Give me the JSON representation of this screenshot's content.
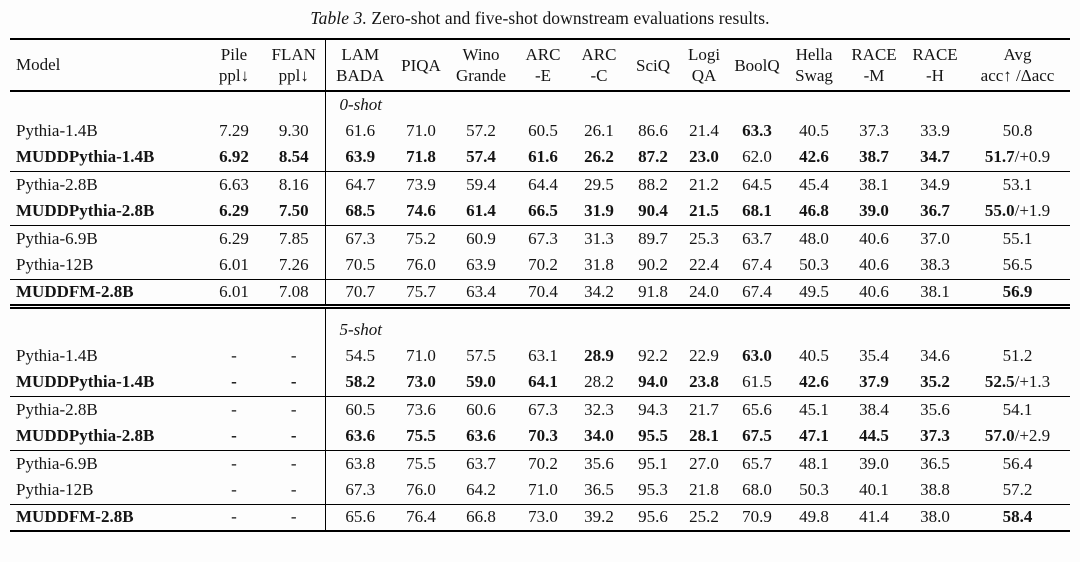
{
  "caption": {
    "label": "Table 3.",
    "text": "Zero-shot and five-shot downstream evaluations results."
  },
  "table": {
    "model_header": "Model",
    "columns": [
      {
        "l1": "Pile",
        "l2": "ppl↓"
      },
      {
        "l1": "FLAN",
        "l2": "ppl↓"
      },
      {
        "l1": "LAM",
        "l2": "BADA"
      },
      {
        "l1": "PIQA",
        "l2": ""
      },
      {
        "l1": "Wino",
        "l2": "Grande"
      },
      {
        "l1": "ARC",
        "l2": "-E"
      },
      {
        "l1": "ARC",
        "l2": "-C"
      },
      {
        "l1": "SciQ",
        "l2": ""
      },
      {
        "l1": "Logi",
        "l2": "QA"
      },
      {
        "l1": "BoolQ",
        "l2": ""
      },
      {
        "l1": "Hella",
        "l2": "Swag"
      },
      {
        "l1": "RACE",
        "l2": "-M"
      },
      {
        "l1": "RACE",
        "l2": "-H"
      },
      {
        "l1": "Avg",
        "l2": "acc↑ /Δacc"
      }
    ],
    "sections": [
      {
        "label": "0-shot",
        "groups": [
          {
            "rows": [
              {
                "model": "Pythia-1.4B",
                "model_bold": false,
                "values": [
                  "7.29",
                  "9.30",
                  "61.6",
                  "71.0",
                  "57.2",
                  "60.5",
                  "26.1",
                  "86.6",
                  "21.4",
                  "63.3",
                  "40.5",
                  "37.3",
                  "33.9",
                  "50.8"
                ],
                "bold": [
                  9
                ],
                "avg_suffix": ""
              },
              {
                "model": "MUDDPythia-1.4B",
                "model_bold": true,
                "values": [
                  "6.92",
                  "8.54",
                  "63.9",
                  "71.8",
                  "57.4",
                  "61.6",
                  "26.2",
                  "87.2",
                  "23.0",
                  "62.0",
                  "42.6",
                  "38.7",
                  "34.7",
                  "51.7"
                ],
                "bold": [
                  0,
                  1,
                  2,
                  3,
                  4,
                  5,
                  6,
                  7,
                  8,
                  10,
                  11,
                  12,
                  13
                ],
                "avg_suffix": "/+0.9"
              }
            ]
          },
          {
            "rows": [
              {
                "model": "Pythia-2.8B",
                "model_bold": false,
                "values": [
                  "6.63",
                  "8.16",
                  "64.7",
                  "73.9",
                  "59.4",
                  "64.4",
                  "29.5",
                  "88.2",
                  "21.2",
                  "64.5",
                  "45.4",
                  "38.1",
                  "34.9",
                  "53.1"
                ],
                "bold": [],
                "avg_suffix": ""
              },
              {
                "model": "MUDDPythia-2.8B",
                "model_bold": true,
                "values": [
                  "6.29",
                  "7.50",
                  "68.5",
                  "74.6",
                  "61.4",
                  "66.5",
                  "31.9",
                  "90.4",
                  "21.5",
                  "68.1",
                  "46.8",
                  "39.0",
                  "36.7",
                  "55.0"
                ],
                "bold": [
                  0,
                  1,
                  2,
                  3,
                  4,
                  5,
                  6,
                  7,
                  8,
                  9,
                  10,
                  11,
                  12,
                  13
                ],
                "avg_suffix": "/+1.9"
              }
            ]
          },
          {
            "rows": [
              {
                "model": "Pythia-6.9B",
                "model_bold": false,
                "values": [
                  "6.29",
                  "7.85",
                  "67.3",
                  "75.2",
                  "60.9",
                  "67.3",
                  "31.3",
                  "89.7",
                  "25.3",
                  "63.7",
                  "48.0",
                  "40.6",
                  "37.0",
                  "55.1"
                ],
                "bold": [],
                "avg_suffix": ""
              },
              {
                "model": "Pythia-12B",
                "model_bold": false,
                "values": [
                  "6.01",
                  "7.26",
                  "70.5",
                  "76.0",
                  "63.9",
                  "70.2",
                  "31.8",
                  "90.2",
                  "22.4",
                  "67.4",
                  "50.3",
                  "40.6",
                  "38.3",
                  "56.5"
                ],
                "bold": [],
                "avg_suffix": ""
              }
            ]
          },
          {
            "rows": [
              {
                "model": "MUDDFM-2.8B",
                "model_bold": true,
                "values": [
                  "6.01",
                  "7.08",
                  "70.7",
                  "75.7",
                  "63.4",
                  "70.4",
                  "34.2",
                  "91.8",
                  "24.0",
                  "67.4",
                  "49.5",
                  "40.6",
                  "38.1",
                  "56.9"
                ],
                "bold": [
                  13
                ],
                "avg_suffix": ""
              }
            ]
          }
        ]
      },
      {
        "label": "5-shot",
        "groups": [
          {
            "rows": [
              {
                "model": "Pythia-1.4B",
                "model_bold": false,
                "values": [
                  "-",
                  "-",
                  "54.5",
                  "71.0",
                  "57.5",
                  "63.1",
                  "28.9",
                  "92.2",
                  "22.9",
                  "63.0",
                  "40.5",
                  "35.4",
                  "34.6",
                  "51.2"
                ],
                "bold": [
                  6,
                  9
                ],
                "avg_suffix": ""
              },
              {
                "model": "MUDDPythia-1.4B",
                "model_bold": true,
                "values": [
                  "-",
                  "-",
                  "58.2",
                  "73.0",
                  "59.0",
                  "64.1",
                  "28.2",
                  "94.0",
                  "23.8",
                  "61.5",
                  "42.6",
                  "37.9",
                  "35.2",
                  "52.5"
                ],
                "bold": [
                  0,
                  1,
                  2,
                  3,
                  4,
                  5,
                  7,
                  8,
                  10,
                  11,
                  12,
                  13
                ],
                "avg_suffix": "/+1.3"
              }
            ]
          },
          {
            "rows": [
              {
                "model": "Pythia-2.8B",
                "model_bold": false,
                "values": [
                  "-",
                  "-",
                  "60.5",
                  "73.6",
                  "60.6",
                  "67.3",
                  "32.3",
                  "94.3",
                  "21.7",
                  "65.6",
                  "45.1",
                  "38.4",
                  "35.6",
                  "54.1"
                ],
                "bold": [],
                "avg_suffix": ""
              },
              {
                "model": "MUDDPythia-2.8B",
                "model_bold": true,
                "values": [
                  "-",
                  "-",
                  "63.6",
                  "75.5",
                  "63.6",
                  "70.3",
                  "34.0",
                  "95.5",
                  "28.1",
                  "67.5",
                  "47.1",
                  "44.5",
                  "37.3",
                  "57.0"
                ],
                "bold": [
                  0,
                  1,
                  2,
                  3,
                  4,
                  5,
                  6,
                  7,
                  8,
                  9,
                  10,
                  11,
                  12,
                  13
                ],
                "avg_suffix": "/+2.9"
              }
            ]
          },
          {
            "rows": [
              {
                "model": "Pythia-6.9B",
                "model_bold": false,
                "values": [
                  "-",
                  "-",
                  "63.8",
                  "75.5",
                  "63.7",
                  "70.2",
                  "35.6",
                  "95.1",
                  "27.0",
                  "65.7",
                  "48.1",
                  "39.0",
                  "36.5",
                  "56.4"
                ],
                "bold": [],
                "avg_suffix": ""
              },
              {
                "model": "Pythia-12B",
                "model_bold": false,
                "values": [
                  "-",
                  "-",
                  "67.3",
                  "76.0",
                  "64.2",
                  "71.0",
                  "36.5",
                  "95.3",
                  "21.8",
                  "68.0",
                  "50.3",
                  "40.1",
                  "38.8",
                  "57.2"
                ],
                "bold": [],
                "avg_suffix": ""
              }
            ]
          },
          {
            "rows": [
              {
                "model": "MUDDFM-2.8B",
                "model_bold": true,
                "values": [
                  "-",
                  "-",
                  "65.6",
                  "76.4",
                  "66.8",
                  "73.0",
                  "39.2",
                  "95.6",
                  "25.2",
                  "70.9",
                  "49.8",
                  "41.4",
                  "38.0",
                  "58.4"
                ],
                "bold": [
                  13
                ],
                "avg_suffix": ""
              }
            ]
          }
        ]
      }
    ]
  }
}
